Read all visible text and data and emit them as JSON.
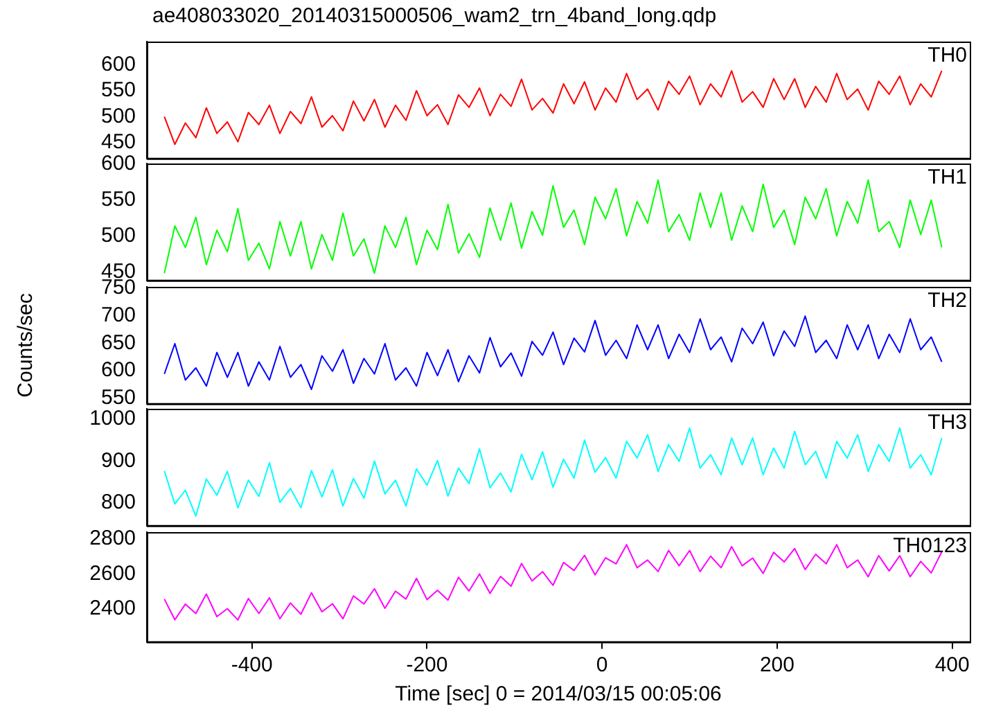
{
  "chart_data": [
    {
      "type": "line",
      "title": "ae408033020_20140315000506_wam2_trn_4band_long.qdp",
      "tick_labels": "y",
      "marker": "none",
      "xlim": [
        -520,
        420
      ],
      "xticks": [
        -400,
        -200,
        0,
        200,
        400
      ],
      "ylim": [
        420,
        644
      ],
      "yticks": [
        450,
        500,
        550,
        600
      ],
      "x": [
        -500,
        -488,
        -476,
        -464,
        -452,
        -440,
        -428,
        -416,
        -404,
        -392,
        -380,
        -368,
        -356,
        -344,
        -332,
        -320,
        -308,
        -296,
        -284,
        -272,
        -260,
        -248,
        -236,
        -224,
        -212,
        -200,
        -188,
        -176,
        -164,
        -152,
        -140,
        -128,
        -116,
        -104,
        -92,
        -80,
        -68,
        -56,
        -44,
        -32,
        -20,
        -8,
        4,
        16,
        28,
        40,
        52,
        64,
        76,
        88,
        100,
        112,
        124,
        136,
        148,
        160,
        172,
        184,
        196,
        208,
        220,
        232,
        244,
        256,
        268,
        280,
        292,
        304,
        316,
        328,
        340,
        352,
        364,
        376,
        388
      ],
      "series": [
        {
          "name": "TH0",
          "color": "#ff0000",
          "values": [
            500,
            447,
            488,
            460,
            517,
            468,
            490,
            452,
            508,
            485,
            522,
            468,
            510,
            487,
            538,
            480,
            502,
            473,
            530,
            492,
            533,
            480,
            522,
            493,
            550,
            502,
            523,
            485,
            542,
            518,
            555,
            502,
            543,
            520,
            572,
            513,
            535,
            507,
            563,
            525,
            567,
            513,
            555,
            528,
            583,
            533,
            553,
            513,
            568,
            543,
            578,
            523,
            563,
            538,
            588,
            528,
            548,
            518,
            573,
            533,
            573,
            518,
            558,
            528,
            583,
            533,
            553,
            513,
            568,
            543,
            578,
            523,
            563,
            538,
            588
          ]
        }
      ]
    },
    {
      "type": "line",
      "tick_labels": "y",
      "marker": "none",
      "xlim": [
        -520,
        420
      ],
      "xticks": [
        -400,
        -200,
        0,
        200,
        400
      ],
      "ylim": [
        438,
        601
      ],
      "yticks": [
        450,
        500,
        550,
        600
      ],
      "x": [
        -500,
        -488,
        -476,
        -464,
        -452,
        -440,
        -428,
        -416,
        -404,
        -392,
        -380,
        -368,
        -356,
        -344,
        -332,
        -320,
        -308,
        -296,
        -284,
        -272,
        -260,
        -248,
        -236,
        -224,
        -212,
        -200,
        -188,
        -176,
        -164,
        -152,
        -140,
        -128,
        -116,
        -104,
        -92,
        -80,
        -68,
        -56,
        -44,
        -32,
        -20,
        -8,
        4,
        16,
        28,
        40,
        52,
        64,
        76,
        88,
        100,
        112,
        124,
        136,
        148,
        160,
        172,
        184,
        196,
        208,
        220,
        232,
        244,
        256,
        268,
        280,
        292,
        304,
        316,
        328,
        340,
        352,
        364,
        376,
        388
      ],
      "series": [
        {
          "name": "TH1",
          "color": "#00ff00",
          "values": [
            448,
            514,
            484,
            526,
            460,
            508,
            478,
            538,
            466,
            490,
            454,
            520,
            472,
            520,
            454,
            502,
            466,
            532,
            472,
            496,
            448,
            514,
            484,
            526,
            460,
            508,
            481,
            544,
            476,
            503,
            470,
            539,
            494,
            546,
            483,
            534,
            501,
            570,
            512,
            536,
            488,
            554,
            524,
            566,
            500,
            548,
            518,
            578,
            506,
            530,
            494,
            560,
            512,
            560,
            494,
            542,
            506,
            572,
            512,
            536,
            488,
            554,
            524,
            566,
            500,
            548,
            518,
            578,
            506,
            520,
            484,
            550,
            502,
            550,
            484
          ]
        }
      ]
    },
    {
      "type": "line",
      "tick_labels": "y",
      "marker": "none",
      "ylabel": "Counts/sec",
      "xlim": [
        -520,
        420
      ],
      "xticks": [
        -400,
        -200,
        0,
        200,
        400
      ],
      "ylim": [
        540,
        752
      ],
      "yticks": [
        550,
        600,
        650,
        700,
        750
      ],
      "x": [
        -500,
        -488,
        -476,
        -464,
        -452,
        -440,
        -428,
        -416,
        -404,
        -392,
        -380,
        -368,
        -356,
        -344,
        -332,
        -320,
        -308,
        -296,
        -284,
        -272,
        -260,
        -248,
        -236,
        -224,
        -212,
        -200,
        -188,
        -176,
        -164,
        -152,
        -140,
        -128,
        -116,
        -104,
        -92,
        -80,
        -68,
        -56,
        -44,
        -32,
        -20,
        -8,
        4,
        16,
        28,
        40,
        52,
        64,
        76,
        88,
        100,
        112,
        124,
        136,
        148,
        160,
        172,
        184,
        196,
        208,
        220,
        232,
        244,
        256,
        268,
        280,
        292,
        304,
        316,
        328,
        340,
        352,
        364,
        376,
        388
      ],
      "series": [
        {
          "name": "TH2",
          "color": "#0000ff",
          "values": [
            594,
            649,
            583,
            605,
            572,
            633,
            588,
            633,
            572,
            616,
            583,
            644,
            588,
            611,
            566,
            627,
            599,
            638,
            577,
            622,
            594,
            649,
            583,
            605,
            572,
            633,
            591,
            638,
            580,
            627,
            596,
            660,
            607,
            632,
            590,
            653,
            628,
            670,
            611,
            659,
            634,
            691,
            628,
            655,
            622,
            683,
            638,
            683,
            622,
            666,
            633,
            694,
            638,
            661,
            616,
            677,
            649,
            688,
            627,
            672,
            644,
            699,
            633,
            655,
            622,
            683,
            638,
            683,
            622,
            666,
            633,
            694,
            638,
            661,
            616
          ]
        }
      ]
    },
    {
      "type": "line",
      "tick_labels": "y",
      "marker": "none",
      "xlim": [
        -520,
        420
      ],
      "xticks": [
        -400,
        -200,
        0,
        200,
        400
      ],
      "ylim": [
        745,
        1025
      ],
      "yticks": [
        800,
        900,
        1000
      ],
      "x": [
        -500,
        -488,
        -476,
        -464,
        -452,
        -440,
        -428,
        -416,
        -404,
        -392,
        -380,
        -368,
        -356,
        -344,
        -332,
        -320,
        -308,
        -296,
        -284,
        -272,
        -260,
        -248,
        -236,
        -224,
        -212,
        -200,
        -188,
        -176,
        -164,
        -152,
        -140,
        -128,
        -116,
        -104,
        -92,
        -80,
        -68,
        -56,
        -44,
        -32,
        -20,
        -8,
        4,
        16,
        28,
        40,
        52,
        64,
        76,
        88,
        100,
        112,
        124,
        136,
        148,
        160,
        172,
        184,
        196,
        208,
        220,
        232,
        244,
        256,
        268,
        280,
        292,
        304,
        316,
        328,
        340,
        352,
        364,
        376,
        388
      ],
      "series": [
        {
          "name": "TH3",
          "color": "#00ffff",
          "values": [
            876,
            797,
            830,
            768,
            857,
            818,
            875,
            788,
            854,
            815,
            896,
            801,
            834,
            788,
            877,
            814,
            879,
            792,
            858,
            811,
            900,
            821,
            854,
            792,
            881,
            842,
            901,
            816,
            883,
            846,
            929,
            836,
            871,
            826,
            916,
            855,
            922,
            837,
            904,
            859,
            950,
            873,
            908,
            859,
            947,
            907,
            963,
            875,
            939,
            899,
            979,
            883,
            915,
            867,
            955,
            891,
            955,
            867,
            931,
            883,
            971,
            891,
            923,
            859,
            947,
            907,
            963,
            875,
            939,
            899,
            979,
            883,
            915,
            867,
            955
          ]
        }
      ]
    },
    {
      "type": "line",
      "marker": "none",
      "xlabel": "Time [sec] 0 = 2014/03/15 00:05:06",
      "xlim": [
        -520,
        420
      ],
      "xticks": [
        -400,
        -200,
        0,
        200,
        400
      ],
      "ylim": [
        2210,
        2840
      ],
      "yticks": [
        2400,
        2600,
        2800
      ],
      "x": [
        -500,
        -488,
        -476,
        -464,
        -452,
        -440,
        -428,
        -416,
        -404,
        -392,
        -380,
        -368,
        -356,
        -344,
        -332,
        -320,
        -308,
        -296,
        -284,
        -272,
        -260,
        -248,
        -236,
        -224,
        -212,
        -200,
        -188,
        -176,
        -164,
        -152,
        -140,
        -128,
        -116,
        -104,
        -92,
        -80,
        -68,
        -56,
        -44,
        -32,
        -20,
        -8,
        4,
        16,
        28,
        40,
        52,
        64,
        76,
        88,
        100,
        112,
        124,
        136,
        148,
        160,
        172,
        184,
        196,
        208,
        220,
        232,
        244,
        256,
        268,
        280,
        292,
        304,
        316,
        328,
        340,
        352,
        364,
        376,
        388
      ],
      "series": [
        {
          "name": "TH0123",
          "color": "#ff00ff",
          "values": [
            2456,
            2337,
            2427,
            2373,
            2485,
            2355,
            2401,
            2336,
            2459,
            2373,
            2463,
            2343,
            2433,
            2369,
            2492,
            2383,
            2429,
            2343,
            2474,
            2428,
            2515,
            2403,
            2501,
            2456,
            2575,
            2453,
            2506,
            2450,
            2581,
            2502,
            2600,
            2488,
            2586,
            2530,
            2660,
            2560,
            2613,
            2535,
            2666,
            2620,
            2707,
            2595,
            2693,
            2658,
            2768,
            2636,
            2680,
            2614,
            2735,
            2647,
            2735,
            2614,
            2702,
            2636,
            2757,
            2647,
            2691,
            2603,
            2724,
            2669,
            2746,
            2625,
            2713,
            2658,
            2768,
            2636,
            2680,
            2584,
            2705,
            2617,
            2705,
            2584,
            2672,
            2606,
            2727
          ]
        }
      ]
    }
  ]
}
